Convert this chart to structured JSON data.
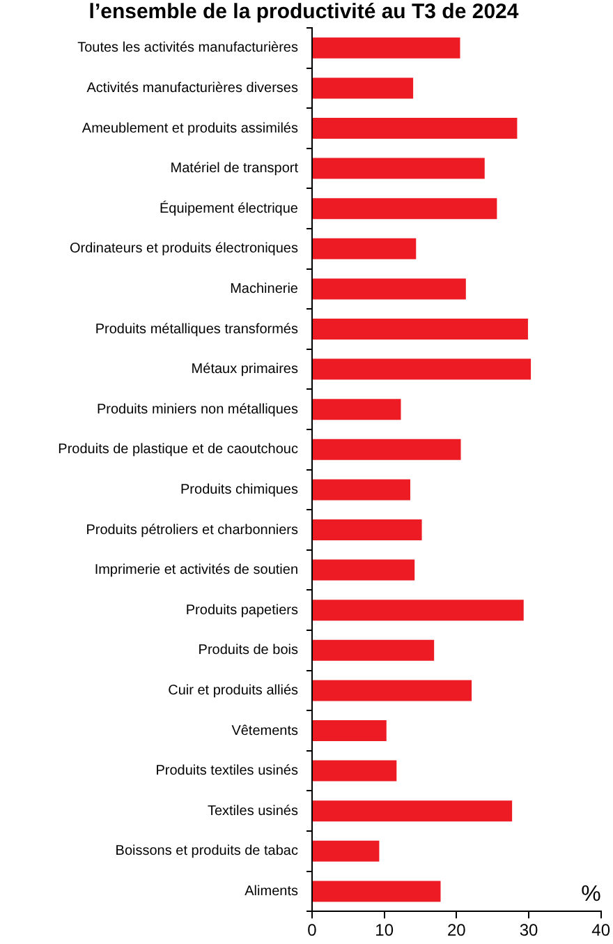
{
  "chart_data": {
    "type": "bar",
    "orientation": "horizontal",
    "title": "l’ensemble de la productivité au T3 de 2024",
    "xlabel": "%",
    "categories": [
      "Toutes les activités manufacturières",
      "Activités manufacturières diverses",
      "Ameublement et produits assimilés",
      "Matériel de transport",
      "Équipement électrique",
      "Ordinateurs et produits électroniques",
      "Machinerie",
      "Produits métalliques transformés",
      "Métaux primaires",
      "Produits miniers non métalliques",
      "Produits de plastique et de caoutchouc",
      "Produits chimiques",
      "Produits pétroliers et charbonniers",
      "Imprimerie et activités de soutien",
      "Produits papetiers",
      "Produits de bois",
      "Cuir et produits alliés",
      "Vêtements",
      "Produits textiles usinés",
      "Textiles usinés",
      "Boissons et produits de tabac",
      "Aliments"
    ],
    "values": [
      20.5,
      14.0,
      28.4,
      23.9,
      25.6,
      14.4,
      21.3,
      29.9,
      30.3,
      12.3,
      20.6,
      13.6,
      15.2,
      14.2,
      29.3,
      16.9,
      22.1,
      10.3,
      11.7,
      27.7,
      9.3,
      17.8
    ],
    "color": "#ed1c24",
    "xlim": [
      0,
      40
    ],
    "xticks": [
      0,
      10,
      20,
      30,
      40
    ],
    "grid": false,
    "legend": false
  }
}
